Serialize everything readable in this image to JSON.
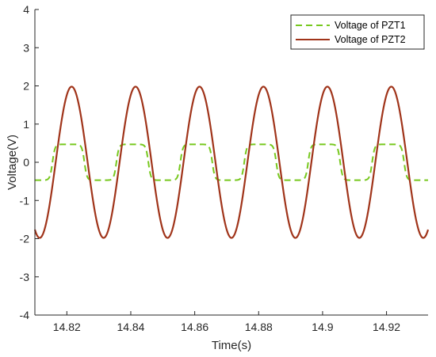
{
  "chart_data": {
    "type": "line",
    "title": "",
    "xlabel": "Time(s)",
    "ylabel": "Voltage(V)",
    "xlim": [
      14.81,
      14.933
    ],
    "ylim": [
      -4,
      4
    ],
    "xticks": [
      14.82,
      14.84,
      14.86,
      14.88,
      14.9,
      14.92
    ],
    "xtick_labels": [
      "14.82",
      "14.84",
      "14.86",
      "14.88",
      "14.9",
      "14.92"
    ],
    "yticks": [
      -4,
      -3,
      -2,
      -1,
      0,
      1,
      2,
      3,
      4
    ],
    "ytick_labels": [
      "-4",
      "-3",
      "-2",
      "-1",
      "0",
      "1",
      "2",
      "3",
      "4"
    ],
    "grid": false,
    "legend_position": "top-right",
    "series": [
      {
        "name": "Voltage of PZT1",
        "color": "#77c81e",
        "line_style": "dashed",
        "shape": "square-like periodic wave",
        "amplitude": 0.47,
        "offset": 0,
        "period": 0.02,
        "peak_times": [
          14.8205,
          14.8405,
          14.8605,
          14.8805,
          14.9005,
          14.9205
        ]
      },
      {
        "name": "Voltage of PZT2",
        "color": "#a0341a",
        "line_style": "solid",
        "shape": "sinusoidal wave",
        "amplitude": 1.98,
        "offset": 0,
        "period": 0.02,
        "peak_times": [
          14.8215,
          14.8415,
          14.8615,
          14.8815,
          14.9015,
          14.9215
        ]
      }
    ]
  }
}
